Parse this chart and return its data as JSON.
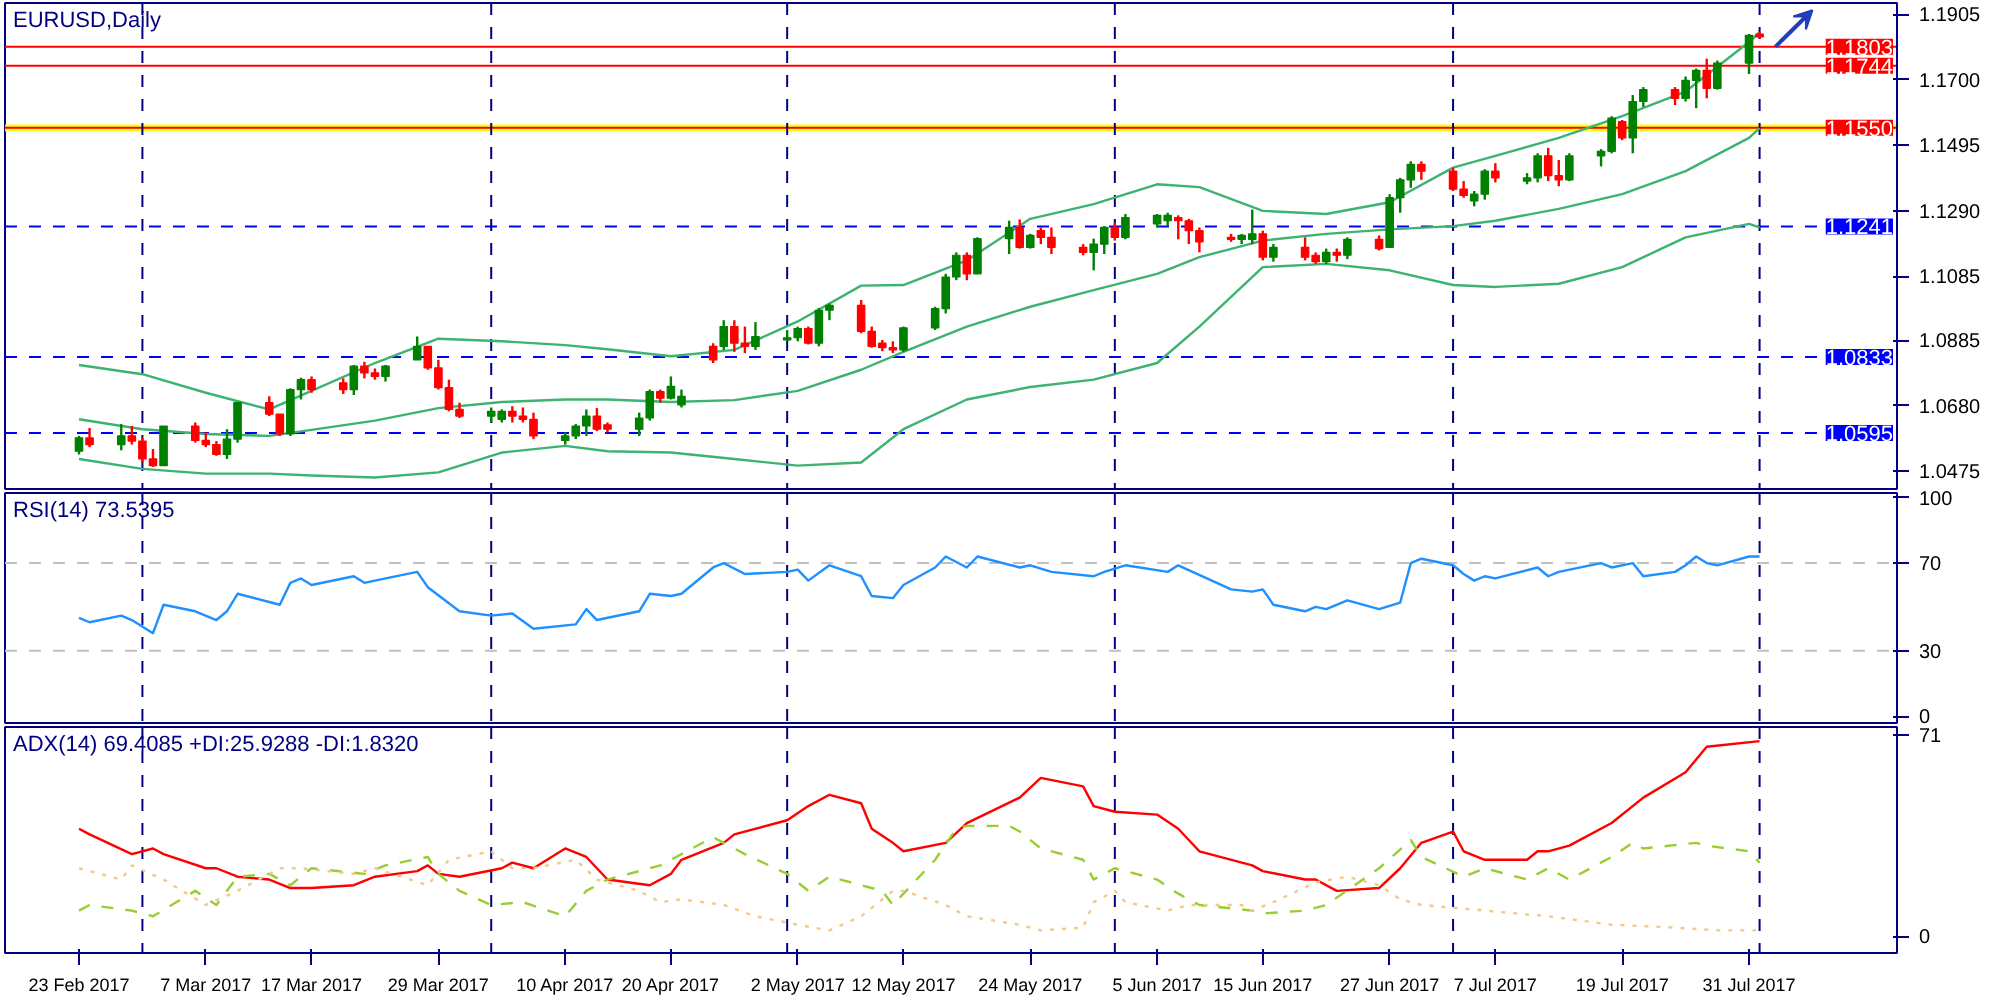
{
  "chart_data": [
    {
      "type": "candlestick",
      "title": "EURUSD,Daily",
      "tick_labels": "y",
      "x": [
        "2017-02-23",
        "2017-02-24",
        "2017-02-27",
        "2017-02-28",
        "2017-03-01",
        "2017-03-02",
        "2017-03-03",
        "2017-03-06",
        "2017-03-07",
        "2017-03-08",
        "2017-03-09",
        "2017-03-10",
        "2017-03-13",
        "2017-03-14",
        "2017-03-15",
        "2017-03-16",
        "2017-03-17",
        "2017-03-20",
        "2017-03-21",
        "2017-03-22",
        "2017-03-23",
        "2017-03-24",
        "2017-03-27",
        "2017-03-28",
        "2017-03-29",
        "2017-03-30",
        "2017-03-31",
        "2017-04-03",
        "2017-04-04",
        "2017-04-05",
        "2017-04-06",
        "2017-04-07",
        "2017-04-10",
        "2017-04-11",
        "2017-04-12",
        "2017-04-13",
        "2017-04-14",
        "2017-04-17",
        "2017-04-18",
        "2017-04-19",
        "2017-04-20",
        "2017-04-21",
        "2017-04-24",
        "2017-04-25",
        "2017-04-26",
        "2017-04-27",
        "2017-04-28",
        "2017-05-01",
        "2017-05-02",
        "2017-05-03",
        "2017-05-04",
        "2017-05-05",
        "2017-05-08",
        "2017-05-09",
        "2017-05-10",
        "2017-05-11",
        "2017-05-12",
        "2017-05-15",
        "2017-05-16",
        "2017-05-17",
        "2017-05-18",
        "2017-05-19",
        "2017-05-22",
        "2017-05-23",
        "2017-05-24",
        "2017-05-25",
        "2017-05-26",
        "2017-05-29",
        "2017-05-30",
        "2017-05-31",
        "2017-06-01",
        "2017-06-02",
        "2017-06-05",
        "2017-06-06",
        "2017-06-07",
        "2017-06-08",
        "2017-06-09",
        "2017-06-12",
        "2017-06-13",
        "2017-06-14",
        "2017-06-15",
        "2017-06-16",
        "2017-06-19",
        "2017-06-20",
        "2017-06-21",
        "2017-06-22",
        "2017-06-23",
        "2017-06-26",
        "2017-06-27",
        "2017-06-28",
        "2017-06-29",
        "2017-06-30",
        "2017-07-03",
        "2017-07-04",
        "2017-07-05",
        "2017-07-06",
        "2017-07-07",
        "2017-07-10",
        "2017-07-11",
        "2017-07-12",
        "2017-07-13",
        "2017-07-14",
        "2017-07-17",
        "2017-07-18",
        "2017-07-19",
        "2017-07-20",
        "2017-07-21",
        "2017-07-24",
        "2017-07-25",
        "2017-07-26",
        "2017-07-27",
        "2017-07-28",
        "2017-07-31",
        "2017-08-01"
      ],
      "ohlc": [
        [
          1.0538,
          1.0586,
          1.0528,
          1.058
        ],
        [
          1.058,
          1.0611,
          1.0551,
          1.0559
        ],
        [
          1.0559,
          1.0623,
          1.0541,
          1.0586
        ],
        [
          1.0586,
          1.0617,
          1.0559,
          1.057
        ],
        [
          1.057,
          1.058,
          1.0503,
          1.0514
        ],
        [
          1.0514,
          1.0545,
          1.0489,
          1.0493
        ],
        [
          1.0493,
          1.0617,
          1.0493,
          1.0617
        ],
        [
          1.0617,
          1.0628,
          1.0565,
          1.0572
        ],
        [
          1.0572,
          1.0597,
          1.0551,
          1.0559
        ],
        [
          1.0559,
          1.057,
          1.0524,
          1.0528
        ],
        [
          1.0528,
          1.0607,
          1.0514,
          1.0576
        ],
        [
          1.0576,
          1.069,
          1.0565,
          1.069
        ],
        [
          1.069,
          1.071,
          1.0648,
          1.0654
        ],
        [
          1.0654,
          1.0654,
          1.0586,
          1.0592
        ],
        [
          1.0592,
          1.0735,
          1.0586,
          1.0731
        ],
        [
          1.0731,
          1.0768,
          1.07,
          1.0762
        ],
        [
          1.0762,
          1.0772,
          1.0721,
          1.0731
        ],
        [
          1.0752,
          1.0766,
          1.0717,
          1.0731
        ],
        [
          1.0731,
          1.0808,
          1.0714,
          1.0804
        ],
        [
          1.0804,
          1.0818,
          1.0766,
          1.0783
        ],
        [
          1.0783,
          1.0797,
          1.0762,
          1.0772
        ],
        [
          1.0772,
          1.0808,
          1.0756,
          1.0804
        ],
        [
          1.0824,
          1.0897,
          1.0824,
          1.0866
        ],
        [
          1.0866,
          1.0866,
          1.0793,
          1.0799
        ],
        [
          1.0799,
          1.0824,
          1.0731,
          1.0737
        ],
        [
          1.0737,
          1.0762,
          1.0663,
          1.0669
        ],
        [
          1.0669,
          1.069,
          1.0642,
          1.0648
        ],
        [
          1.0648,
          1.0675,
          1.0628,
          1.0663
        ],
        [
          1.0638,
          1.0669,
          1.0628,
          1.0663
        ],
        [
          1.0663,
          1.0679,
          1.0628,
          1.0648
        ],
        [
          1.0648,
          1.0675,
          1.0628,
          1.0638
        ],
        [
          1.0638,
          1.0659,
          1.0576,
          1.0586
        ],
        [
          1.0572,
          1.0597,
          1.0559,
          1.0586
        ],
        [
          1.0586,
          1.0623,
          1.0576,
          1.0617
        ],
        [
          1.0617,
          1.0669,
          1.0586,
          1.0648
        ],
        [
          1.0648,
          1.0673,
          1.0601,
          1.0607
        ],
        [
          1.0621,
          1.0628,
          1.0597,
          1.0607
        ],
        [
          1.0607,
          1.0659,
          1.0586,
          1.0642
        ],
        [
          1.0642,
          1.0731,
          1.0634,
          1.0725
        ],
        [
          1.0725,
          1.0731,
          1.069,
          1.0704
        ],
        [
          1.0704,
          1.0772,
          1.07,
          1.0741
        ],
        [
          1.0683,
          1.0731,
          1.0675,
          1.071
        ],
        [
          1.0866,
          1.0876,
          1.0814,
          1.0824
        ],
        [
          1.0866,
          1.0948,
          1.0855,
          1.0928
        ],
        [
          1.0928,
          1.0948,
          1.0849,
          1.0876
        ],
        [
          1.0876,
          1.0928,
          1.0845,
          1.0866
        ],
        [
          1.0866,
          1.0942,
          1.0855,
          1.0897
        ],
        [
          1.0886,
          1.0917,
          1.0882,
          1.0893
        ],
        [
          1.0893,
          1.0928,
          1.0882,
          1.0922
        ],
        [
          1.0922,
          1.0928,
          1.0872,
          1.0876
        ],
        [
          1.0876,
          1.0986,
          1.0866,
          1.0979
        ],
        [
          1.0979,
          1.1,
          1.0948,
          1.0994
        ],
        [
          1.0994,
          1.1011,
          1.0907,
          1.0913
        ],
        [
          1.0913,
          1.0928,
          1.0862,
          1.0866
        ],
        [
          1.0876,
          1.0886,
          1.0851,
          1.0862
        ],
        [
          1.0862,
          1.0882,
          1.0845,
          1.0855
        ],
        [
          1.0855,
          1.0928,
          1.0849,
          1.0924
        ],
        [
          1.0924,
          1.099,
          1.0917,
          1.0984
        ],
        [
          1.0984,
          1.1093,
          1.0969,
          1.1083
        ],
        [
          1.1083,
          1.116,
          1.1073,
          1.1151
        ],
        [
          1.1151,
          1.116,
          1.1073,
          1.1093
        ],
        [
          1.1093,
          1.1207,
          1.1093,
          1.1203
        ],
        [
          1.1203,
          1.1259,
          1.1155,
          1.1238
        ],
        [
          1.1238,
          1.1263,
          1.1172,
          1.1176
        ],
        [
          1.1176,
          1.1218,
          1.1172,
          1.1213
        ],
        [
          1.1228,
          1.1238,
          1.1186,
          1.1207
        ],
        [
          1.1207,
          1.1238,
          1.1155,
          1.1176
        ],
        [
          1.1176,
          1.1186,
          1.1151,
          1.116
        ],
        [
          1.116,
          1.1203,
          1.1104,
          1.1186
        ],
        [
          1.1186,
          1.1242,
          1.1155,
          1.1238
        ],
        [
          1.1238,
          1.1253,
          1.1197,
          1.1207
        ],
        [
          1.1207,
          1.128,
          1.1201,
          1.1269
        ],
        [
          1.1249,
          1.128,
          1.1238,
          1.1276
        ],
        [
          1.1259,
          1.1284,
          1.1242,
          1.1276
        ],
        [
          1.1269,
          1.1276,
          1.1201,
          1.1259
        ],
        [
          1.1259,
          1.1265,
          1.1186,
          1.1228
        ],
        [
          1.1228,
          1.1238,
          1.116,
          1.1193
        ],
        [
          1.1207,
          1.1218,
          1.1193,
          1.1201
        ],
        [
          1.1201,
          1.1218,
          1.1186,
          1.1213
        ],
        [
          1.1201,
          1.1294,
          1.1186,
          1.1218
        ],
        [
          1.1218,
          1.1228,
          1.1135,
          1.1145
        ],
        [
          1.1145,
          1.1186,
          1.1131,
          1.1176
        ],
        [
          1.1176,
          1.1207,
          1.1135,
          1.1145
        ],
        [
          1.1151,
          1.116,
          1.1124,
          1.1131
        ],
        [
          1.1131,
          1.1172,
          1.1124,
          1.116
        ],
        [
          1.116,
          1.1172,
          1.1131,
          1.1151
        ],
        [
          1.1151,
          1.1207,
          1.1139,
          1.1201
        ],
        [
          1.1201,
          1.1213,
          1.1166,
          1.1172
        ],
        [
          1.1176,
          1.1342,
          1.1176,
          1.1331
        ],
        [
          1.1331,
          1.1393,
          1.1284,
          1.1387
        ],
        [
          1.1387,
          1.1445,
          1.1362,
          1.1435
        ],
        [
          1.1435,
          1.1445,
          1.1387,
          1.1414
        ],
        [
          1.1414,
          1.1425,
          1.1352,
          1.1358
        ],
        [
          1.1358,
          1.1383,
          1.1331,
          1.1338
        ],
        [
          1.1321,
          1.1352,
          1.1304,
          1.1342
        ],
        [
          1.1342,
          1.142,
          1.1325,
          1.1414
        ],
        [
          1.1414,
          1.1439,
          1.1379,
          1.1393
        ],
        [
          1.1383,
          1.1408,
          1.1373,
          1.1393
        ],
        [
          1.1393,
          1.147,
          1.1379,
          1.1462
        ],
        [
          1.1462,
          1.1487,
          1.1383,
          1.14
        ],
        [
          1.14,
          1.1449,
          1.1367,
          1.1387
        ],
        [
          1.1387,
          1.147,
          1.1383,
          1.1462
        ],
        [
          1.1462,
          1.1483,
          1.1429,
          1.1476
        ],
        [
          1.1476,
          1.1586,
          1.147,
          1.158
        ],
        [
          1.1569,
          1.1574,
          1.1511,
          1.1518
        ],
        [
          1.1518,
          1.1652,
          1.147,
          1.1632
        ],
        [
          1.1632,
          1.1677,
          1.1615,
          1.1669
        ],
        [
          1.1669,
          1.1677,
          1.1621,
          1.1642
        ],
        [
          1.1642,
          1.171,
          1.1632,
          1.1698
        ],
        [
          1.1698,
          1.1735,
          1.1611,
          1.1729
        ],
        [
          1.1729,
          1.1766,
          1.1642,
          1.1673
        ],
        [
          1.1673,
          1.176,
          1.1669,
          1.1752
        ],
        [
          1.1752,
          1.1843,
          1.1718,
          1.1839
        ],
        [
          1.1843,
          1.1849,
          1.1828,
          1.1834
        ]
      ],
      "colors": [
        "#008000",
        "#ff0000",
        "#008000",
        "#ff0000",
        "#ff0000",
        "#ff0000",
        "#008000",
        "#ff0000",
        "#ff0000",
        "#ff0000",
        "#008000",
        "#008000",
        "#ff0000",
        "#ff0000",
        "#008000",
        "#008000",
        "#ff0000",
        "#ff0000",
        "#008000",
        "#ff0000",
        "#ff0000",
        "#008000",
        "#008000",
        "#ff0000",
        "#ff0000",
        "#ff0000",
        "#ff0000",
        "#008000",
        "#008000",
        "#ff0000",
        "#ff0000",
        "#ff0000",
        "#008000",
        "#008000",
        "#008000",
        "#ff0000",
        "#ff0000",
        "#008000",
        "#008000",
        "#ff0000",
        "#008000",
        "#008000",
        "#ff0000",
        "#008000",
        "#ff0000",
        "#ff0000",
        "#008000",
        "#008000",
        "#008000",
        "#ff0000",
        "#008000",
        "#008000",
        "#ff0000",
        "#ff0000",
        "#ff0000",
        "#ff0000",
        "#008000",
        "#008000",
        "#008000",
        "#008000",
        "#ff0000",
        "#008000",
        "#008000",
        "#ff0000",
        "#008000",
        "#ff0000",
        "#ff0000",
        "#ff0000",
        "#008000",
        "#008000",
        "#ff0000",
        "#008000",
        "#008000",
        "#008000",
        "#ff0000",
        "#ff0000",
        "#ff0000",
        "#ff0000",
        "#008000",
        "#008000",
        "#ff0000",
        "#008000",
        "#ff0000",
        "#ff0000",
        "#008000",
        "#ff0000",
        "#008000",
        "#ff0000",
        "#008000",
        "#008000",
        "#008000",
        "#ff0000",
        "#ff0000",
        "#ff0000",
        "#008000",
        "#008000",
        "#ff0000",
        "#008000",
        "#008000",
        "#ff0000",
        "#ff0000",
        "#008000",
        "#008000",
        "#008000",
        "#ff0000",
        "#008000",
        "#008000",
        "#ff0000",
        "#008000",
        "#008000",
        "#ff0000",
        "#008000",
        "#008000",
        "#ff0000"
      ],
      "series": [
        {
          "type": "line",
          "color": "#3cb371",
          "x": [
            "2017-02-23",
            "2017-03-01",
            "2017-03-07",
            "2017-03-13",
            "2017-03-17",
            "2017-03-23",
            "2017-03-29",
            "2017-04-04",
            "2017-04-10",
            "2017-04-14",
            "2017-04-20",
            "2017-04-26",
            "2017-05-02",
            "2017-05-08",
            "2017-05-12",
            "2017-05-18",
            "2017-05-24",
            "2017-05-30",
            "2017-06-05",
            "2017-06-09",
            "2017-06-15",
            "2017-06-21",
            "2017-06-27",
            "2017-07-03",
            "2017-07-07",
            "2017-07-13",
            "2017-07-19",
            "2017-07-25",
            "2017-07-31",
            "2017-08-01"
          ],
          "values": [
            1.0808,
            1.0779,
            1.0721,
            1.0669,
            1.0727,
            1.0814,
            1.089,
            1.0882,
            1.087,
            1.0857,
            1.0835,
            1.0855,
            1.0944,
            1.1056,
            1.1058,
            1.1135,
            1.1265,
            1.1311,
            1.1373,
            1.1364,
            1.129,
            1.128,
            1.1317,
            1.1425,
            1.1462,
            1.1518,
            1.1586,
            1.1663,
            1.1818,
            1.1849
          ]
        },
        {
          "type": "line",
          "color": "#3cb371",
          "x": [
            "2017-02-23",
            "2017-03-01",
            "2017-03-07",
            "2017-03-13",
            "2017-03-17",
            "2017-03-23",
            "2017-03-29",
            "2017-04-04",
            "2017-04-10",
            "2017-04-14",
            "2017-04-20",
            "2017-04-26",
            "2017-05-02",
            "2017-05-08",
            "2017-05-12",
            "2017-05-18",
            "2017-05-24",
            "2017-05-30",
            "2017-06-05",
            "2017-06-09",
            "2017-06-15",
            "2017-06-21",
            "2017-06-27",
            "2017-07-03",
            "2017-07-07",
            "2017-07-13",
            "2017-07-19",
            "2017-07-25",
            "2017-07-31",
            "2017-08-01"
          ],
          "values": [
            1.0638,
            1.0607,
            1.0592,
            1.0586,
            1.0605,
            1.0634,
            1.0673,
            1.0692,
            1.07,
            1.07,
            1.0692,
            1.0698,
            1.0727,
            1.0793,
            1.0849,
            1.0928,
            1.099,
            1.1042,
            1.1093,
            1.1145,
            1.1197,
            1.1218,
            1.1232,
            1.1242,
            1.1259,
            1.1296,
            1.1342,
            1.1414,
            1.1518,
            1.1549
          ]
        },
        {
          "type": "line",
          "color": "#3cb371",
          "x": [
            "2017-02-23",
            "2017-03-01",
            "2017-03-07",
            "2017-03-13",
            "2017-03-17",
            "2017-03-23",
            "2017-03-29",
            "2017-04-04",
            "2017-04-10",
            "2017-04-14",
            "2017-04-20",
            "2017-04-26",
            "2017-05-02",
            "2017-05-08",
            "2017-05-12",
            "2017-05-18",
            "2017-05-24",
            "2017-05-30",
            "2017-06-05",
            "2017-06-09",
            "2017-06-15",
            "2017-06-21",
            "2017-06-27",
            "2017-07-03",
            "2017-07-07",
            "2017-07-13",
            "2017-07-19",
            "2017-07-25",
            "2017-07-31",
            "2017-08-01"
          ],
          "values": [
            1.0514,
            1.0483,
            1.0468,
            1.0468,
            1.0462,
            1.0456,
            1.0472,
            1.0534,
            1.0555,
            1.0538,
            1.0534,
            1.0514,
            1.0493,
            1.0503,
            1.0607,
            1.07,
            1.0739,
            1.0762,
            1.0814,
            1.0928,
            1.1114,
            1.1124,
            1.1104,
            1.1058,
            1.1052,
            1.1062,
            1.1114,
            1.1207,
            1.1249,
            1.1238
          ]
        }
      ],
      "xlim": [
        "2017-02-16",
        "2017-08-14"
      ],
      "ylim": [
        1.042,
        1.194
      ],
      "yticks": [
        1.0475,
        {
          "value": 1.068,
          "label": "1.0680"
        },
        1.0885,
        1.1085,
        {
          "value": 1.129,
          "label": "1.1290"
        },
        1.1495,
        {
          "value": 1.17,
          "label": "1.1700"
        },
        1.1905
      ],
      "ref_lines": [
        {
          "axis": "y",
          "value": 1.1803,
          "label": "1.1803",
          "color": "#ff0000",
          "line_style": "solid"
        },
        {
          "axis": "y",
          "value": 1.1744,
          "label": "1.1744",
          "color": "#ff0000",
          "line_style": "solid"
        },
        {
          "axis": "y",
          "value": 1.155,
          "label": "1.1550",
          "color": "#ff0000",
          "line_style": "solid"
        },
        {
          "axis": "y",
          "value": 1.1241,
          "label": "1.1241",
          "color": "#0000ff",
          "line_style": "dashed"
        },
        {
          "axis": "y",
          "value": 1.0833,
          "label": "1.0833",
          "color": "#0000ff",
          "line_style": "dashed"
        },
        {
          "axis": "y",
          "value": 1.0595,
          "label": "1.0595",
          "color": "#0000ff",
          "line_style": "dashed"
        },
        {
          "axis": "x",
          "value": "2017-03-01",
          "color": "#000080",
          "line_style": "dashed"
        },
        {
          "axis": "x",
          "value": "2017-04-03",
          "color": "#000080",
          "line_style": "dashed"
        },
        {
          "axis": "x",
          "value": "2017-05-01",
          "color": "#000080",
          "line_style": "dashed"
        },
        {
          "axis": "x",
          "value": "2017-06-01",
          "color": "#000080",
          "line_style": "dashed"
        },
        {
          "axis": "x",
          "value": "2017-07-03",
          "color": "#000080",
          "line_style": "dashed"
        },
        {
          "axis": "x",
          "value": "2017-08-01",
          "color": "#000080",
          "line_style": "dashed"
        }
      ],
      "bands": [
        {
          "axis": "y",
          "from": 1.1538,
          "to": 1.156,
          "color": "#ffff00"
        }
      ]
    },
    {
      "type": "line",
      "title": "RSI(14) 73.5395",
      "tick_labels": "y",
      "x": [
        "2017-02-23",
        "2017-02-24",
        "2017-02-27",
        "2017-02-28",
        "2017-03-02",
        "2017-03-03",
        "2017-03-06",
        "2017-03-08",
        "2017-03-09",
        "2017-03-10",
        "2017-03-14",
        "2017-03-15",
        "2017-03-16",
        "2017-03-17",
        "2017-03-21",
        "2017-03-22",
        "2017-03-23",
        "2017-03-27",
        "2017-03-28",
        "2017-03-31",
        "2017-04-03",
        "2017-04-05",
        "2017-04-07",
        "2017-04-11",
        "2017-04-12",
        "2017-04-13",
        "2017-04-17",
        "2017-04-18",
        "2017-04-20",
        "2017-04-21",
        "2017-04-24",
        "2017-04-25",
        "2017-04-27",
        "2017-05-01",
        "2017-05-02",
        "2017-05-03",
        "2017-05-05",
        "2017-05-08",
        "2017-05-09",
        "2017-05-11",
        "2017-05-12",
        "2017-05-15",
        "2017-05-16",
        "2017-05-18",
        "2017-05-19",
        "2017-05-23",
        "2017-05-24",
        "2017-05-26",
        "2017-05-30",
        "2017-05-31",
        "2017-06-02",
        "2017-06-06",
        "2017-06-07",
        "2017-06-12",
        "2017-06-14",
        "2017-06-15",
        "2017-06-16",
        "2017-06-19",
        "2017-06-20",
        "2017-06-21",
        "2017-06-23",
        "2017-06-26",
        "2017-06-28",
        "2017-06-29",
        "2017-06-30",
        "2017-07-03",
        "2017-07-04",
        "2017-07-05",
        "2017-07-06",
        "2017-07-07",
        "2017-07-11",
        "2017-07-12",
        "2017-07-13",
        "2017-07-17",
        "2017-07-18",
        "2017-07-20",
        "2017-07-21",
        "2017-07-24",
        "2017-07-25",
        "2017-07-26",
        "2017-07-27",
        "2017-07-28",
        "2017-07-31",
        "2017-08-01"
      ],
      "series": [
        {
          "color": "#1e90ff",
          "values": [
            45,
            43,
            46,
            44,
            38,
            51,
            48,
            44,
            48,
            56,
            51,
            61,
            63,
            60,
            64,
            61,
            62,
            66,
            59,
            48,
            46,
            47,
            40,
            42,
            49,
            44,
            48,
            56,
            55,
            56,
            68,
            70,
            65,
            66,
            67,
            62,
            69,
            64,
            55,
            54,
            60,
            68,
            73,
            68,
            73,
            68,
            69,
            66,
            64,
            66,
            69,
            66,
            69,
            58,
            57,
            58,
            51,
            48,
            50,
            49,
            53,
            49,
            52,
            70,
            72,
            69,
            65,
            62,
            64,
            63,
            68,
            64,
            66,
            70,
            68,
            70,
            64,
            66,
            69,
            73,
            70,
            69,
            73,
            73
          ]
        }
      ],
      "xlim": [
        "2017-02-16",
        "2017-08-14"
      ],
      "ylim": [
        -3,
        102
      ],
      "yticks": [
        0,
        30,
        70,
        100
      ],
      "ref_lines": [
        {
          "axis": "y",
          "value": 30,
          "color": "#c0c0c0",
          "line_style": "dashed"
        },
        {
          "axis": "y",
          "value": 70,
          "color": "#c0c0c0",
          "line_style": "dashed"
        },
        {
          "axis": "x",
          "value": "2017-03-01",
          "color": "#000080",
          "line_style": "dashed"
        },
        {
          "axis": "x",
          "value": "2017-04-03",
          "color": "#000080",
          "line_style": "dashed"
        },
        {
          "axis": "x",
          "value": "2017-05-01",
          "color": "#000080",
          "line_style": "dashed"
        },
        {
          "axis": "x",
          "value": "2017-06-01",
          "color": "#000080",
          "line_style": "dashed"
        },
        {
          "axis": "x",
          "value": "2017-07-03",
          "color": "#000080",
          "line_style": "dashed"
        },
        {
          "axis": "x",
          "value": "2017-08-01",
          "color": "#000080",
          "line_style": "dashed"
        }
      ]
    },
    {
      "type": "line",
      "title": "ADX(14) 69.4085 +DI:25.9288 -DI:1.8320",
      "series": [
        {
          "color": "#ff0000",
          "line_style": "solid",
          "x": [
            "2017-02-23",
            "2017-02-24",
            "2017-02-28",
            "2017-03-02",
            "2017-03-03",
            "2017-03-07",
            "2017-03-08",
            "2017-03-10",
            "2017-03-13",
            "2017-03-15",
            "2017-03-17",
            "2017-03-21",
            "2017-03-23",
            "2017-03-27",
            "2017-03-28",
            "2017-03-29",
            "2017-03-31",
            "2017-04-04",
            "2017-04-05",
            "2017-04-07",
            "2017-04-10",
            "2017-04-12",
            "2017-04-14",
            "2017-04-18",
            "2017-04-20",
            "2017-04-21",
            "2017-04-25",
            "2017-04-26",
            "2017-05-01",
            "2017-05-03",
            "2017-05-05",
            "2017-05-08",
            "2017-05-09",
            "2017-05-11",
            "2017-05-12",
            "2017-05-16",
            "2017-05-18",
            "2017-05-23",
            "2017-05-25",
            "2017-05-29",
            "2017-05-30",
            "2017-06-01",
            "2017-06-05",
            "2017-06-07",
            "2017-06-09",
            "2017-06-14",
            "2017-06-15",
            "2017-06-19",
            "2017-06-20",
            "2017-06-22",
            "2017-06-26",
            "2017-06-28",
            "2017-06-30",
            "2017-07-03",
            "2017-07-04",
            "2017-07-06",
            "2017-07-10",
            "2017-07-11",
            "2017-07-12",
            "2017-07-14",
            "2017-07-18",
            "2017-07-21",
            "2017-07-25",
            "2017-07-27",
            "2017-08-01"
          ],
          "values": [
            38,
            36,
            29,
            31,
            29,
            24,
            24,
            21,
            20,
            17,
            17,
            18,
            21,
            23,
            25,
            22,
            21,
            24,
            26,
            24,
            31,
            28,
            20,
            18,
            22,
            27,
            33,
            36,
            41,
            46,
            50,
            47,
            38,
            33,
            30,
            33,
            40,
            49,
            56,
            53,
            46,
            44,
            43,
            38,
            30,
            25,
            23,
            20,
            20,
            16,
            17,
            24,
            33,
            37,
            30,
            27,
            27,
            30,
            30,
            32,
            40,
            49,
            58,
            67,
            69
          ]
        },
        {
          "color": "#9acd32",
          "line_style": "dashed",
          "x": [
            "2017-02-23",
            "2017-02-24",
            "2017-02-28",
            "2017-03-02",
            "2017-03-06",
            "2017-03-08",
            "2017-03-10",
            "2017-03-13",
            "2017-03-15",
            "2017-03-17",
            "2017-03-22",
            "2017-03-24",
            "2017-03-28",
            "2017-03-29",
            "2017-03-31",
            "2017-04-03",
            "2017-04-06",
            "2017-04-10",
            "2017-04-12",
            "2017-04-14",
            "2017-04-19",
            "2017-04-24",
            "2017-04-25",
            "2017-04-27",
            "2017-05-01",
            "2017-05-03",
            "2017-05-05",
            "2017-05-10",
            "2017-05-11",
            "2017-05-15",
            "2017-05-17",
            "2017-05-18",
            "2017-05-22",
            "2017-05-23",
            "2017-05-25",
            "2017-05-29",
            "2017-05-30",
            "2017-06-01",
            "2017-06-05",
            "2017-06-07",
            "2017-06-09",
            "2017-06-14",
            "2017-06-15",
            "2017-06-19",
            "2017-06-21",
            "2017-06-26",
            "2017-06-29",
            "2017-06-30",
            "2017-07-04",
            "2017-07-06",
            "2017-07-10",
            "2017-07-12",
            "2017-07-14",
            "2017-07-18",
            "2017-07-20",
            "2017-07-21",
            "2017-07-26",
            "2017-07-27",
            "2017-07-31",
            "2017-08-01"
          ],
          "values": [
            9,
            11,
            9,
            7,
            16,
            11,
            21,
            22,
            18,
            24,
            22,
            25,
            28,
            22,
            16,
            11,
            12,
            7,
            16,
            20,
            25,
            35,
            33,
            29,
            22,
            16,
            21,
            16,
            11,
            27,
            38,
            39,
            39,
            37,
            31,
            27,
            20,
            24,
            20,
            15,
            11,
            9,
            8,
            9,
            11,
            24,
            34,
            28,
            21,
            24,
            20,
            24,
            20,
            28,
            33,
            31,
            33,
            32,
            30,
            26
          ]
        },
        {
          "color": "#f5c88a",
          "line_style": "dotted",
          "x": [
            "2017-02-23",
            "2017-02-27",
            "2017-02-28",
            "2017-03-03",
            "2017-03-07",
            "2017-03-10",
            "2017-03-14",
            "2017-03-16",
            "2017-03-21",
            "2017-03-23",
            "2017-03-28",
            "2017-03-30",
            "2017-04-03",
            "2017-04-05",
            "2017-04-07",
            "2017-04-11",
            "2017-04-13",
            "2017-04-17",
            "2017-04-19",
            "2017-04-21",
            "2017-04-25",
            "2017-04-28",
            "2017-05-02",
            "2017-05-05",
            "2017-05-08",
            "2017-05-11",
            "2017-05-12",
            "2017-05-16",
            "2017-05-18",
            "2017-05-23",
            "2017-05-25",
            "2017-05-29",
            "2017-05-30",
            "2017-06-01",
            "2017-06-02",
            "2017-06-06",
            "2017-06-08",
            "2017-06-13",
            "2017-06-14",
            "2017-06-16",
            "2017-06-20",
            "2017-06-23",
            "2017-06-26",
            "2017-06-28",
            "2017-06-30",
            "2017-07-06",
            "2017-07-12",
            "2017-07-18",
            "2017-07-24",
            "2017-07-28",
            "2017-08-01"
          ],
          "values": [
            24,
            20,
            25,
            20,
            11,
            16,
            24,
            24,
            22,
            24,
            18,
            27,
            30,
            24,
            24,
            27,
            20,
            16,
            12,
            13,
            11,
            7,
            4,
            2,
            7,
            16,
            16,
            11,
            7,
            4,
            2,
            3,
            12,
            16,
            12,
            9,
            11,
            11,
            9,
            12,
            19,
            21,
            18,
            13,
            11,
            9,
            7,
            4,
            3,
            2,
            2
          ]
        }
      ],
      "xlim": [
        "2017-02-16",
        "2017-08-14"
      ],
      "xticks": [
        {
          "value": "2017-02-23",
          "label": "23 Feb 2017"
        },
        {
          "value": "2017-03-07",
          "label": "7 Mar 2017"
        },
        {
          "value": "2017-03-17",
          "label": "17 Mar 2017"
        },
        {
          "value": "2017-03-29",
          "label": "29 Mar 2017"
        },
        {
          "value": "2017-04-10",
          "label": "10 Apr 2017"
        },
        {
          "value": "2017-04-20",
          "label": "20 Apr 2017"
        },
        {
          "value": "2017-05-02",
          "label": "2 May 2017"
        },
        {
          "value": "2017-05-12",
          "label": "12 May 2017"
        },
        {
          "value": "2017-05-24",
          "label": "24 May 2017"
        },
        {
          "value": "2017-06-05",
          "label": "5 Jun 2017"
        },
        {
          "value": "2017-06-15",
          "label": "15 Jun 2017"
        },
        {
          "value": "2017-06-27",
          "label": "27 Jun 2017"
        },
        {
          "value": "2017-07-07",
          "label": "7 Jul 2017"
        },
        {
          "value": "2017-07-19",
          "label": "19 Jul 2017"
        },
        {
          "value": "2017-07-31",
          "label": "31 Jul 2017"
        }
      ],
      "ylim": [
        -6,
        74
      ],
      "yticks": [
        0,
        71
      ],
      "ref_lines": [
        {
          "axis": "x",
          "value": "2017-03-01",
          "color": "#000080",
          "line_style": "dashed"
        },
        {
          "axis": "x",
          "value": "2017-04-03",
          "color": "#000080",
          "line_style": "dashed"
        },
        {
          "axis": "x",
          "value": "2017-05-01",
          "color": "#000080",
          "line_style": "dashed"
        },
        {
          "axis": "x",
          "value": "2017-06-01",
          "color": "#000080",
          "line_style": "dashed"
        },
        {
          "axis": "x",
          "value": "2017-07-03",
          "color": "#000080",
          "line_style": "dashed"
        },
        {
          "axis": "x",
          "value": "2017-08-01",
          "color": "#000080",
          "line_style": "dashed"
        }
      ]
    }
  ]
}
